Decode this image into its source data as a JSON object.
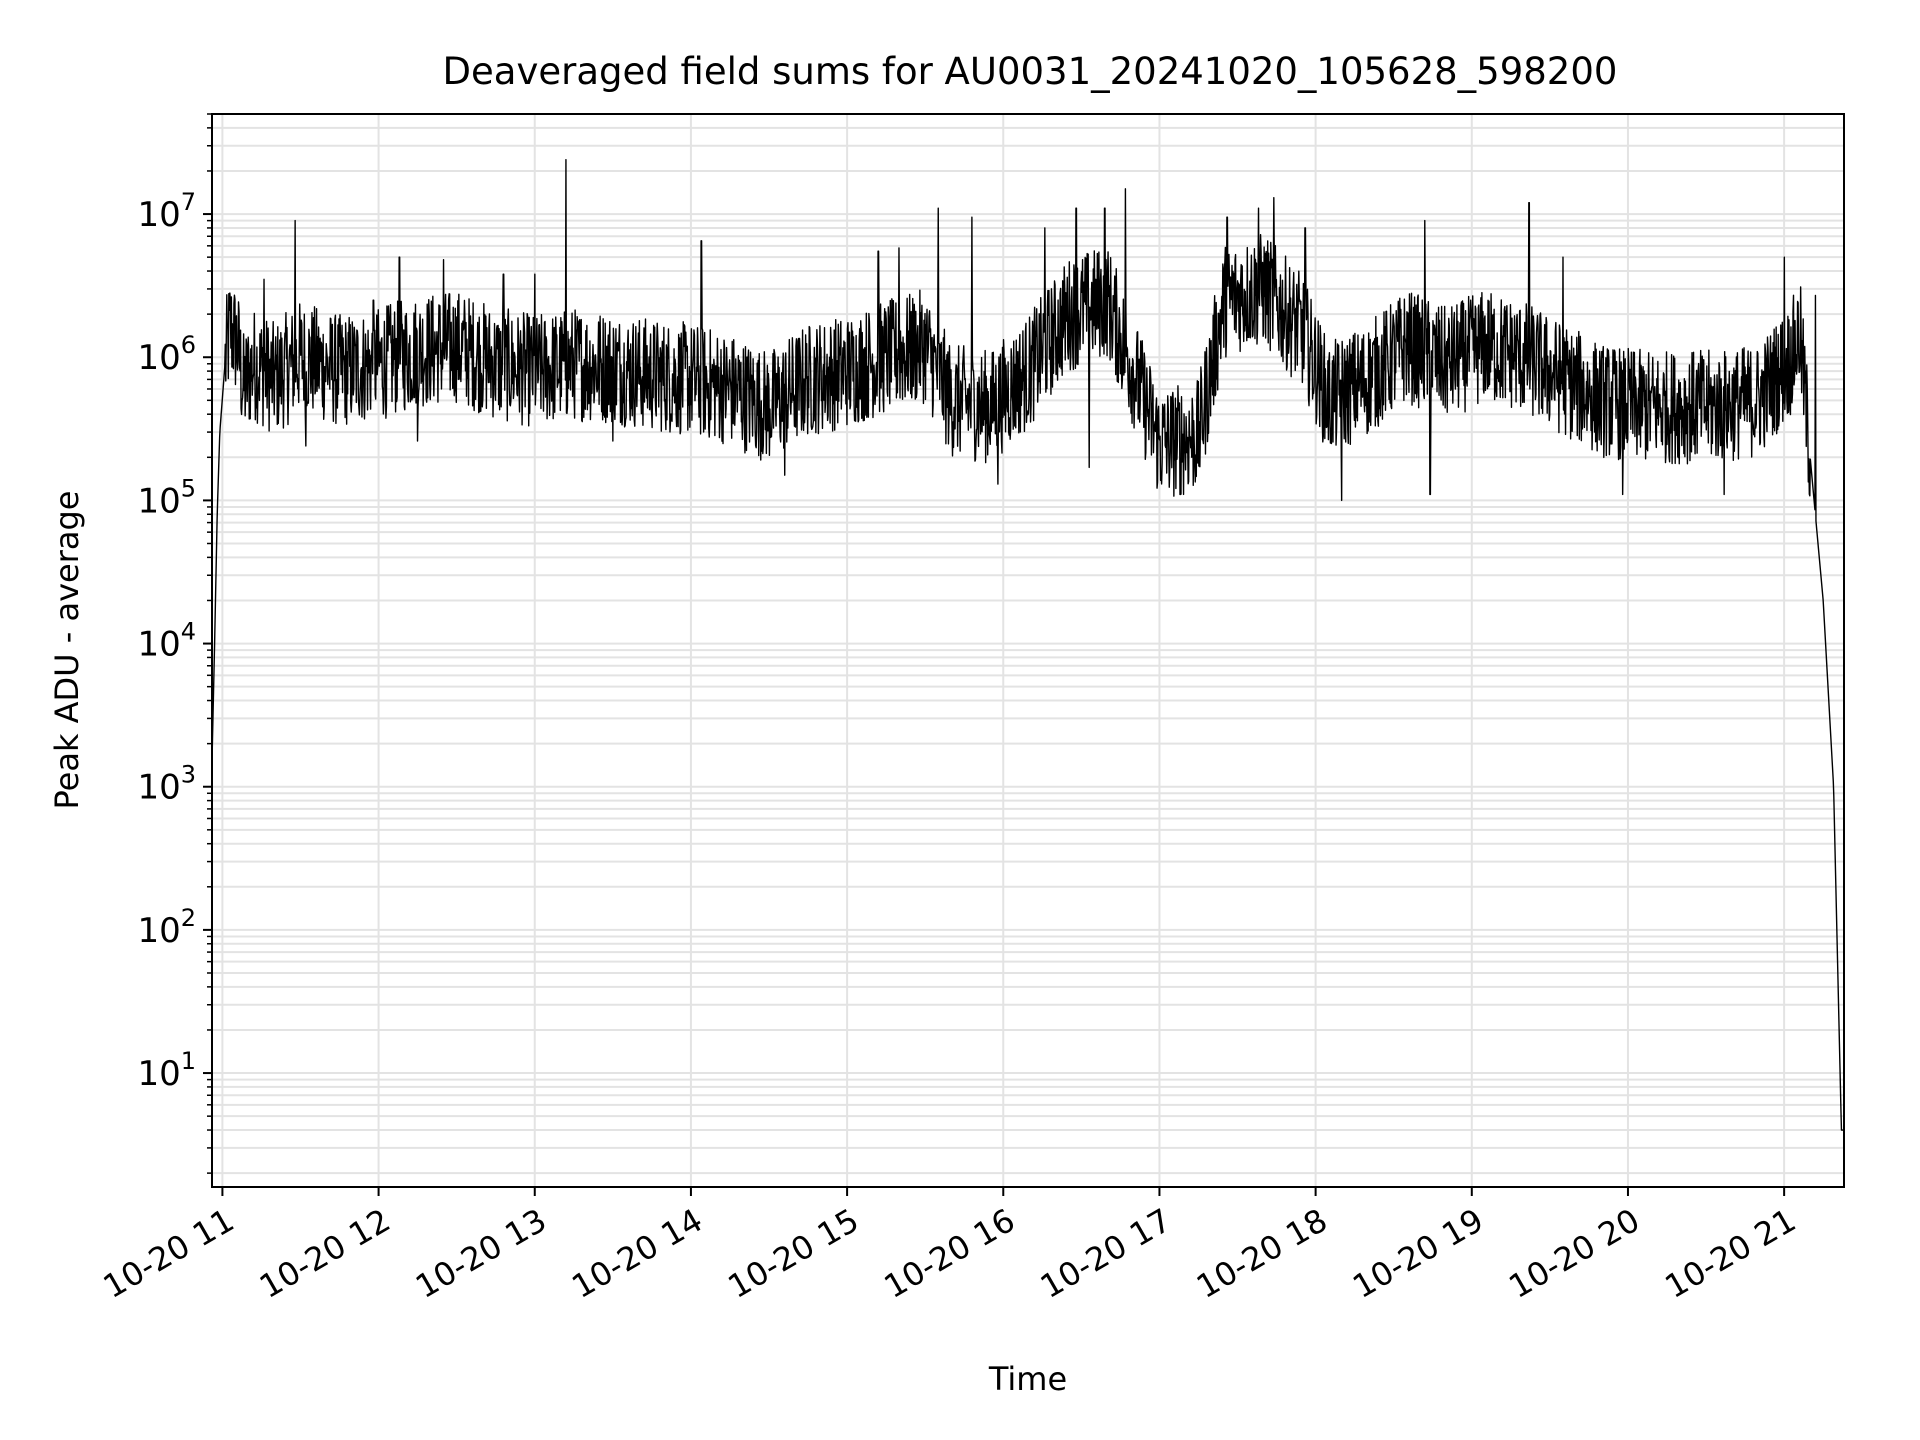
{
  "chart_data": {
    "type": "line",
    "title": "Deaveraged field sums for AU0031_20241020_105628_598200",
    "xlabel": "Time",
    "ylabel": "Peak ADU - average",
    "yscale": "log",
    "ylim": [
      1.6,
      50000000
    ],
    "xlim": [
      "2024-10-20 10:56",
      "2024-10-20 21:23"
    ],
    "grid": true,
    "x_tick_labels": [
      "10-20 11",
      "10-20 12",
      "10-20 13",
      "10-20 14",
      "10-20 15",
      "10-20 16",
      "10-20 17",
      "10-20 18",
      "10-20 19",
      "10-20 20",
      "10-20 21"
    ],
    "x_tick_values": [
      "2024-10-20 11:00",
      "2024-10-20 12:00",
      "2024-10-20 13:00",
      "2024-10-20 14:00",
      "2024-10-20 15:00",
      "2024-10-20 16:00",
      "2024-10-20 17:00",
      "2024-10-20 18:00",
      "2024-10-20 19:00",
      "2024-10-20 20:00",
      "2024-10-20 21:00"
    ],
    "y_tick_labels": [
      {
        "base": "10",
        "exp": "1"
      },
      {
        "base": "10",
        "exp": "2"
      },
      {
        "base": "10",
        "exp": "3"
      },
      {
        "base": "10",
        "exp": "4"
      },
      {
        "base": "10",
        "exp": "5"
      },
      {
        "base": "10",
        "exp": "6"
      },
      {
        "base": "10",
        "exp": "7"
      }
    ],
    "y_tick_values": [
      10,
      100,
      1000,
      10000,
      100000,
      1000000,
      10000000
    ],
    "series": [
      {
        "color": "#000000",
        "points": [
          [
            "2024-10-20 10:56",
            1500
          ],
          [
            "2024-10-20 10:57",
            10000
          ],
          [
            "2024-10-20 10:58",
            80000
          ],
          [
            "2024-10-20 10:59",
            300000
          ],
          [
            "2024-10-20 11:01",
            900000
          ],
          [
            "2024-10-20 11:03",
            1600000
          ],
          [
            "2024-10-20 11:06",
            1200000
          ],
          [
            "2024-10-20 11:08",
            600000
          ],
          [
            "2024-10-20 11:12",
            900000
          ],
          [
            "2024-10-20 11:20",
            700000
          ],
          [
            "2024-10-20 11:30",
            1000000
          ],
          [
            "2024-10-20 11:45",
            800000
          ],
          [
            "2024-10-20 12:00",
            900000
          ],
          [
            "2024-10-20 12:15",
            1100000
          ],
          [
            "2024-10-20 12:30",
            1200000
          ],
          [
            "2024-10-20 12:45",
            900000
          ],
          [
            "2024-10-20 13:00",
            800000
          ],
          [
            "2024-10-20 13:15",
            900000
          ],
          [
            "2024-10-20 13:30",
            850000
          ],
          [
            "2024-10-20 13:45",
            750000
          ],
          [
            "2024-10-20 14:00",
            700000
          ],
          [
            "2024-10-20 14:15",
            600000
          ],
          [
            "2024-10-20 14:30",
            450000
          ],
          [
            "2024-10-20 14:45",
            700000
          ],
          [
            "2024-10-20 15:00",
            800000
          ],
          [
            "2024-10-20 15:15",
            1000000
          ],
          [
            "2024-10-20 15:30",
            1200000
          ],
          [
            "2024-10-20 15:40",
            500000
          ],
          [
            "2024-10-20 15:55",
            450000
          ],
          [
            "2024-10-20 16:10",
            800000
          ],
          [
            "2024-10-20 16:25",
            2000000
          ],
          [
            "2024-10-20 16:40",
            2500000
          ],
          [
            "2024-10-20 16:50",
            800000
          ],
          [
            "2024-10-20 17:00",
            250000
          ],
          [
            "2024-10-20 17:15",
            280000
          ],
          [
            "2024-10-20 17:25",
            2500000
          ],
          [
            "2024-10-20 17:40",
            3000000
          ],
          [
            "2024-10-20 17:55",
            1500000
          ],
          [
            "2024-10-20 18:05",
            500000
          ],
          [
            "2024-10-20 18:20",
            700000
          ],
          [
            "2024-10-20 18:35",
            1200000
          ],
          [
            "2024-10-20 18:50",
            900000
          ],
          [
            "2024-10-20 19:05",
            1200000
          ],
          [
            "2024-10-20 19:20",
            1000000
          ],
          [
            "2024-10-20 19:35",
            700000
          ],
          [
            "2024-10-20 19:50",
            500000
          ],
          [
            "2024-10-20 20:05",
            450000
          ],
          [
            "2024-10-20 20:20",
            450000
          ],
          [
            "2024-10-20 20:35",
            450000
          ],
          [
            "2024-10-20 20:50",
            500000
          ],
          [
            "2024-10-20 21:03",
            1000000
          ],
          [
            "2024-10-20 21:06",
            1500000
          ],
          [
            "2024-10-20 21:10",
            200000
          ],
          [
            "2024-10-20 21:15",
            20000
          ],
          [
            "2024-10-20 21:19",
            1000
          ],
          [
            "2024-10-20 21:22",
            4
          ]
        ],
        "spikes": [
          [
            "2024-10-20 11:16",
            3500000
          ],
          [
            "2024-10-20 11:28",
            9000000
          ],
          [
            "2024-10-20 11:58",
            2500000
          ],
          [
            "2024-10-20 12:08",
            5000000
          ],
          [
            "2024-10-20 12:25",
            4800000
          ],
          [
            "2024-10-20 12:48",
            3800000
          ],
          [
            "2024-10-20 13:00",
            3800000
          ],
          [
            "2024-10-20 13:12",
            24000000
          ],
          [
            "2024-10-20 14:04",
            6500000
          ],
          [
            "2024-10-20 15:12",
            5500000
          ],
          [
            "2024-10-20 15:20",
            5800000
          ],
          [
            "2024-10-20 15:35",
            11000000
          ],
          [
            "2024-10-20 15:48",
            9500000
          ],
          [
            "2024-10-20 16:16",
            8000000
          ],
          [
            "2024-10-20 16:28",
            11000000
          ],
          [
            "2024-10-20 16:39",
            11000000
          ],
          [
            "2024-10-20 16:47",
            15000000
          ],
          [
            "2024-10-20 17:26",
            9500000
          ],
          [
            "2024-10-20 17:38",
            11000000
          ],
          [
            "2024-10-20 17:44",
            13000000
          ],
          [
            "2024-10-20 17:56",
            8000000
          ],
          [
            "2024-10-20 18:42",
            9000000
          ],
          [
            "2024-10-20 19:22",
            12000000
          ],
          [
            "2024-10-20 19:35",
            5000000
          ],
          [
            "2024-10-20 21:00",
            5000000
          ],
          [
            "2024-10-20 21:12",
            2700000
          ]
        ],
        "dips": [
          [
            "2024-10-20 11:32",
            240000
          ],
          [
            "2024-10-20 12:15",
            260000
          ],
          [
            "2024-10-20 13:30",
            260000
          ],
          [
            "2024-10-20 14:36",
            150000
          ],
          [
            "2024-10-20 15:58",
            130000
          ],
          [
            "2024-10-20 16:33",
            170000
          ],
          [
            "2024-10-20 17:08",
            110000
          ],
          [
            "2024-10-20 18:10",
            100000
          ],
          [
            "2024-10-20 18:44",
            110000
          ],
          [
            "2024-10-20 19:58",
            110000
          ],
          [
            "2024-10-20 20:37",
            110000
          ]
        ]
      }
    ]
  }
}
